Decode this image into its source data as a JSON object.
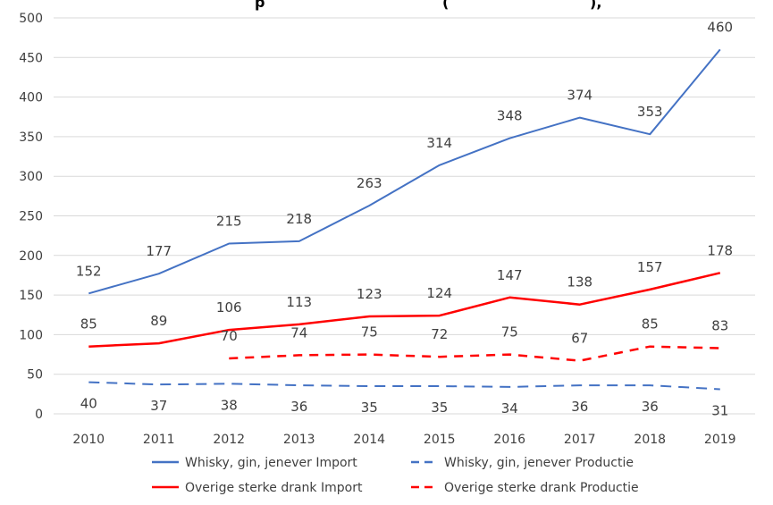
{
  "title_fragment": "p",
  "title_fragment_2": "(",
  "title_fragment_3": "),",
  "chart_data": {
    "type": "line",
    "x": [
      2010,
      2011,
      2012,
      2013,
      2014,
      2015,
      2016,
      2017,
      2018,
      2019
    ],
    "ylim": [
      0,
      500
    ],
    "yticks": [
      0,
      50,
      100,
      150,
      200,
      250,
      300,
      350,
      400,
      450,
      500
    ],
    "grid": true,
    "legend_position": "bottom",
    "series": [
      {
        "name": "Whisky, gin, jenever Import",
        "color": "#4472C4",
        "dash": "solid",
        "values": [
          152,
          177,
          215,
          218,
          263,
          314,
          348,
          374,
          353,
          460
        ]
      },
      {
        "name": "Whisky, gin, jenever Productie",
        "color": "#4472C4",
        "dash": "dashed",
        "values": [
          40,
          37,
          38,
          36,
          35,
          35,
          34,
          36,
          36,
          31
        ]
      },
      {
        "name": "Overige sterke drank Import",
        "color": "#FF0000",
        "dash": "solid",
        "values": [
          85,
          89,
          106,
          113,
          123,
          124,
          147,
          138,
          157,
          178
        ]
      },
      {
        "name": "Overige sterke drank Productie",
        "color": "#FF0000",
        "dash": "dashed",
        "values": [
          null,
          null,
          70,
          74,
          75,
          72,
          75,
          67,
          85,
          83
        ]
      }
    ]
  }
}
